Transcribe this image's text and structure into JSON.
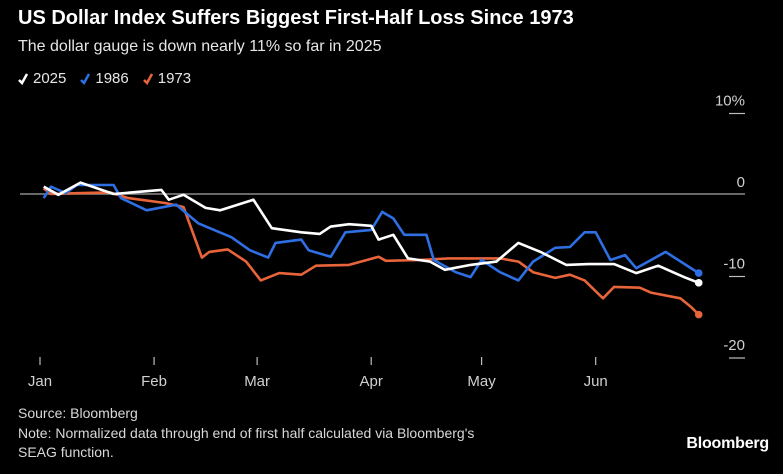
{
  "header": {
    "title": "US Dollar Index Suffers Biggest First-Half Loss Since 1973",
    "subtitle": "The dollar gauge is down nearly 11% so far in 2025"
  },
  "footer": {
    "source": "Source: Bloomberg",
    "note_line1": "Note: Normalized data through end of first half calculated via Bloomberg's",
    "note_line2": "SEAG function.",
    "logo": "Bloomberg"
  },
  "chart_data": {
    "type": "line",
    "title": "US Dollar Index Suffers Biggest First-Half Loss Since 1973",
    "subtitle": "The dollar gauge is down nearly 11% so far in 2025",
    "xlabel": "",
    "ylabel": "",
    "x_tick_labels": [
      "Jan",
      "Feb",
      "Mar",
      "Apr",
      "May",
      "Jun"
    ],
    "y_ticks": [
      10,
      0,
      -10,
      -20
    ],
    "y_tick_labels": [
      "10%",
      "0",
      "-10",
      "-20"
    ],
    "ylim": [
      -20,
      10
    ],
    "xlim": [
      "01-01",
      "06-30"
    ],
    "legend_placement": "top-left",
    "grid": false,
    "zero_line": true,
    "series": [
      {
        "name": "2025",
        "color": "#ffffff",
        "points": [
          [
            "01-02",
            0.9
          ],
          [
            "01-06",
            -0.1
          ],
          [
            "01-12",
            1.4
          ],
          [
            "01-21",
            0
          ],
          [
            "02-03",
            0.5
          ],
          [
            "02-05",
            -0.7
          ],
          [
            "02-09",
            -0.1
          ],
          [
            "02-15",
            -1.7
          ],
          [
            "02-19",
            -2.0
          ],
          [
            "02-28",
            -0.7
          ],
          [
            "03-05",
            -4.2
          ],
          [
            "03-13",
            -4.7
          ],
          [
            "03-18",
            -4.9
          ],
          [
            "03-21",
            -4.0
          ],
          [
            "03-26",
            -3.7
          ],
          [
            "04-01",
            -3.9
          ],
          [
            "04-03",
            -5.6
          ],
          [
            "04-07",
            -5.0
          ],
          [
            "04-11",
            -7.9
          ],
          [
            "04-17",
            -8.3
          ],
          [
            "04-21",
            -9.3
          ],
          [
            "04-28",
            -8.7
          ],
          [
            "05-05",
            -8.3
          ],
          [
            "05-11",
            -6.0
          ],
          [
            "05-17",
            -7.1
          ],
          [
            "05-24",
            -8.7
          ],
          [
            "05-30",
            -8.6
          ],
          [
            "06-06",
            -8.6
          ],
          [
            "06-12",
            -9.7
          ],
          [
            "06-18",
            -8.8
          ],
          [
            "06-25",
            -10.2
          ],
          [
            "06-29",
            -10.9
          ]
        ]
      },
      {
        "name": "1986",
        "color": "#2f6fe4",
        "points": [
          [
            "01-02",
            -0.5
          ],
          [
            "01-04",
            0.9
          ],
          [
            "01-08",
            0.1
          ],
          [
            "01-11",
            1.1
          ],
          [
            "01-21",
            1.1
          ],
          [
            "01-23",
            -0.5
          ],
          [
            "01-30",
            -2.0
          ],
          [
            "02-07",
            -1.3
          ],
          [
            "02-13",
            -3.6
          ],
          [
            "02-22",
            -5.3
          ],
          [
            "02-27",
            -6.9
          ],
          [
            "03-04",
            -7.8
          ],
          [
            "03-06",
            -6.0
          ],
          [
            "03-13",
            -5.6
          ],
          [
            "03-15",
            -6.9
          ],
          [
            "03-21",
            -7.7
          ],
          [
            "03-25",
            -4.7
          ],
          [
            "04-01",
            -4.4
          ],
          [
            "04-04",
            -2.2
          ],
          [
            "04-07",
            -3.0
          ],
          [
            "04-10",
            -5.0
          ],
          [
            "04-16",
            -5.0
          ],
          [
            "04-18",
            -8.1
          ],
          [
            "04-24",
            -9.6
          ],
          [
            "04-28",
            -10.2
          ],
          [
            "05-01",
            -8.1
          ],
          [
            "05-06",
            -9.6
          ],
          [
            "05-11",
            -10.6
          ],
          [
            "05-15",
            -8.3
          ],
          [
            "05-21",
            -6.6
          ],
          [
            "05-25",
            -6.5
          ],
          [
            "05-29",
            -4.7
          ],
          [
            "06-01",
            -4.7
          ],
          [
            "06-05",
            -8.1
          ],
          [
            "06-09",
            -7.5
          ],
          [
            "06-12",
            -9.1
          ],
          [
            "06-20",
            -7.1
          ],
          [
            "06-29",
            -9.7
          ]
        ]
      },
      {
        "name": "1973",
        "color": "#e8643a",
        "points": [
          [
            "01-02",
            0.7
          ],
          [
            "01-04",
            0
          ],
          [
            "01-11",
            0.1
          ],
          [
            "01-20",
            0.2
          ],
          [
            "01-25",
            -0.5
          ],
          [
            "02-04",
            -1.1
          ],
          [
            "02-09",
            -1.6
          ],
          [
            "02-14",
            -7.8
          ],
          [
            "02-16",
            -7.1
          ],
          [
            "02-21",
            -6.8
          ],
          [
            "02-26",
            -8.3
          ],
          [
            "03-02",
            -10.6
          ],
          [
            "03-07",
            -9.7
          ],
          [
            "03-13",
            -9.9
          ],
          [
            "03-17",
            -8.8
          ],
          [
            "03-26",
            -8.7
          ],
          [
            "04-03",
            -7.7
          ],
          [
            "04-05",
            -8.2
          ],
          [
            "04-14",
            -8.1
          ],
          [
            "04-22",
            -7.9
          ],
          [
            "05-06",
            -7.9
          ],
          [
            "05-11",
            -8.3
          ],
          [
            "05-15",
            -9.6
          ],
          [
            "05-21",
            -10.3
          ],
          [
            "05-25",
            -9.9
          ],
          [
            "05-29",
            -10.6
          ],
          [
            "06-03",
            -12.8
          ],
          [
            "06-06",
            -11.4
          ],
          [
            "06-13",
            -11.5
          ],
          [
            "06-16",
            -12.1
          ],
          [
            "06-24",
            -12.8
          ],
          [
            "06-27",
            -13.9
          ],
          [
            "06-29",
            -14.8
          ]
        ]
      }
    ]
  }
}
